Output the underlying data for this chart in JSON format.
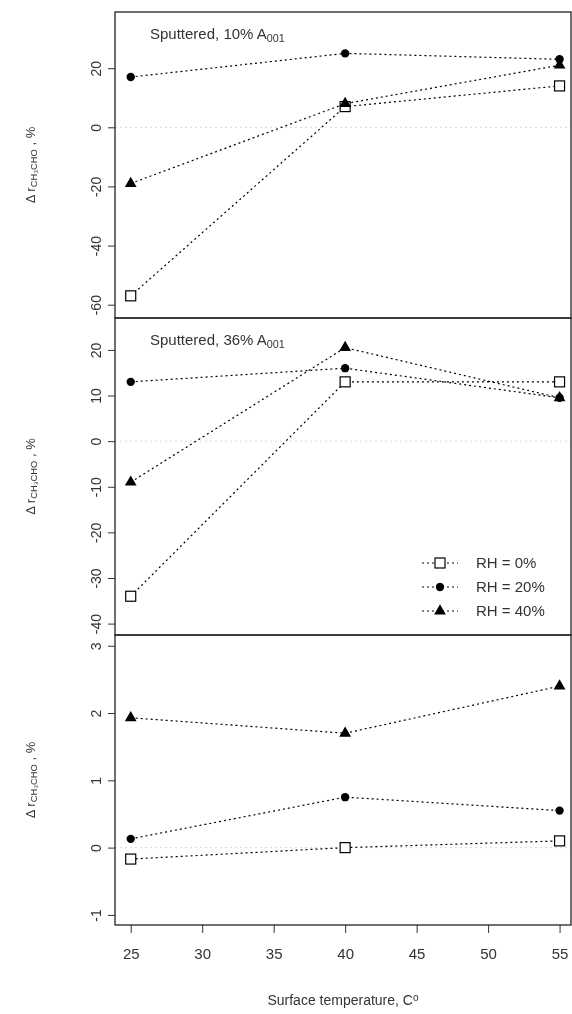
{
  "chart_data": [
    {
      "type": "line",
      "title": "Sputtered, 10% A$_{001}$",
      "ylabel": "Δ r$_{CH₃CHO}$ , %",
      "x": [
        25,
        40,
        55
      ],
      "xlim": [
        23.9,
        55.8
      ],
      "ylim": [
        -64.5,
        39
      ],
      "yticks": [
        -60,
        -40,
        -20,
        0,
        20
      ],
      "tick_labels": "y",
      "line_style": "dotted",
      "grid": false,
      "legend": false,
      "ref_lines": [
        {
          "axis": "y",
          "value": 0,
          "color": "#d9d9d9",
          "line_style": "dotted"
        }
      ],
      "series": [
        {
          "color": "#000000",
          "marker": "square",
          "values": [
            -57,
            7,
            14
          ]
        },
        {
          "color": "#000000",
          "marker": "circle",
          "values": [
            17,
            25,
            23
          ]
        },
        {
          "color": "#000000",
          "marker": "triangle",
          "values": [
            -19,
            8,
            21
          ]
        }
      ]
    },
    {
      "type": "line",
      "title": "Sputtered, 36% A$_{001}$",
      "ylabel": "Δ r$_{CH₃CHO}$ , %",
      "x": [
        25,
        40,
        55
      ],
      "xlim": [
        23.9,
        55.8
      ],
      "ylim": [
        -42.5,
        27
      ],
      "yticks": [
        -40,
        -30,
        -20,
        -10,
        0,
        10,
        20
      ],
      "tick_labels": "y",
      "line_style": "dotted",
      "grid": false,
      "legend": "bottom right",
      "ref_lines": [
        {
          "axis": "y",
          "value": 0,
          "color": "#d9d9d9",
          "line_style": "dotted"
        }
      ],
      "series": [
        {
          "name": "RH = 0%",
          "color": "#000000",
          "marker": "square",
          "values": [
            -34,
            13,
            13
          ]
        },
        {
          "name": "RH = 20%",
          "color": "#000000",
          "marker": "circle",
          "values": [
            13,
            16,
            9.5
          ]
        },
        {
          "name": "RH = 40%",
          "color": "#000000",
          "marker": "triangle",
          "values": [
            -9,
            20.5,
            9.5
          ]
        }
      ]
    },
    {
      "type": "line",
      "ylabel": "Δ r$_{CH₃CHO}$ , %",
      "xlabel": "Surface temperature, C$^{o}$",
      "x": [
        25,
        40,
        55
      ],
      "xlim": [
        23.9,
        55.8
      ],
      "xticks": [
        25,
        30,
        35,
        40,
        45,
        50,
        55
      ],
      "ylim": [
        -1.15,
        3.16
      ],
      "yticks": [
        -1,
        0,
        1,
        2,
        3
      ],
      "line_style": "dotted",
      "grid": false,
      "legend": false,
      "ref_lines": [
        {
          "axis": "y",
          "value": 0,
          "color": "#d9d9d9",
          "line_style": "dotted"
        }
      ],
      "series": [
        {
          "color": "#000000",
          "marker": "square",
          "values": [
            -0.17,
            0,
            0.1
          ]
        },
        {
          "color": "#000000",
          "marker": "circle",
          "values": [
            0.13,
            0.75,
            0.55
          ]
        },
        {
          "color": "#000000",
          "marker": "triangle",
          "values": [
            1.93,
            1.7,
            2.4
          ]
        }
      ]
    }
  ]
}
